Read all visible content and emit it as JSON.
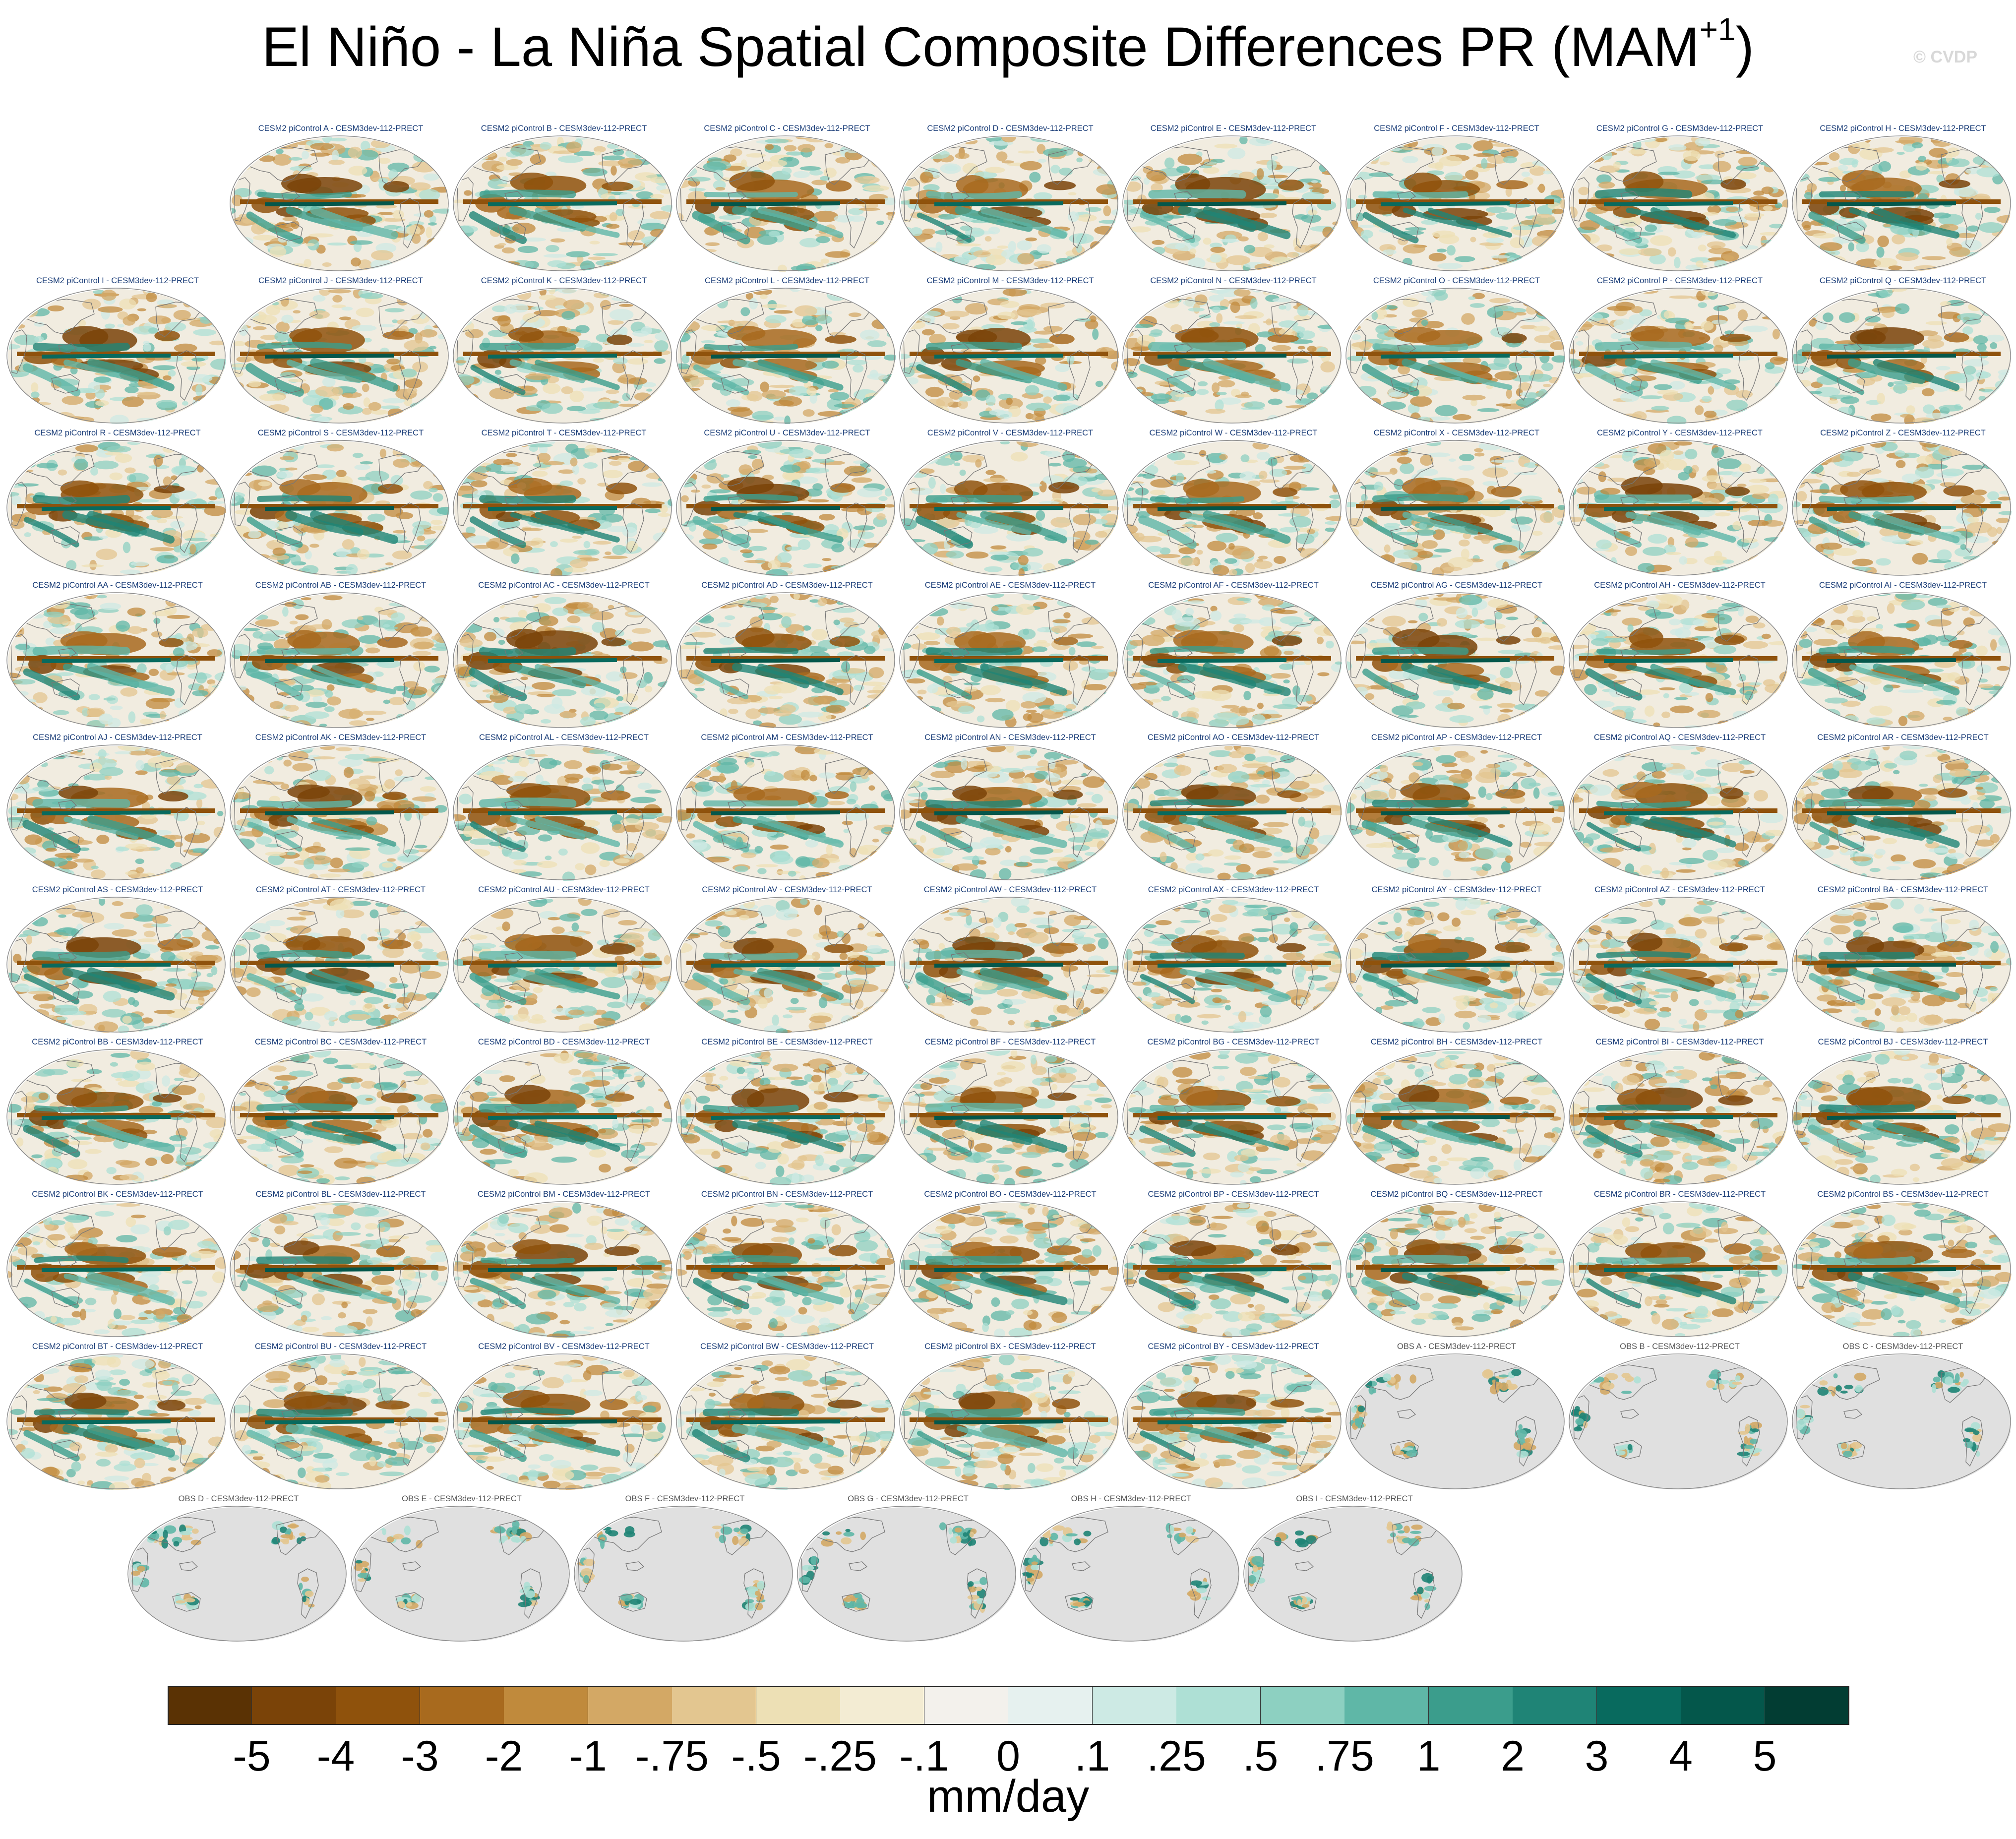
{
  "title": "El Niño - La Niña Spatial Composite Differences PR (MAM",
  "title_superscript": "+1",
  "title_suffix": ")",
  "copyright": "© CVDP",
  "units": "mm/day",
  "colors": {
    "ensemble_label": "#1a3d78",
    "obs_label": "#555555",
    "land_obs": "#e0e0e0",
    "coast": "#777777"
  },
  "colorbar": {
    "ticks": [
      "-5",
      "-4",
      "-3",
      "-2",
      "-1",
      "-.75",
      "-.5",
      "-.25",
      "-.1",
      "0",
      ".1",
      ".25",
      ".5",
      ".75",
      "1",
      "2",
      "3",
      "4",
      "5"
    ],
    "colors": [
      "#5a3204",
      "#7a4308",
      "#8f520c",
      "#a86a1e",
      "#c08a3c",
      "#d3a865",
      "#e3c690",
      "#ede0b5",
      "#f3ecd3",
      "#f3f1ec",
      "#e6f1ef",
      "#cdeae4",
      "#aee0d5",
      "#8dd0c1",
      "#5fb7a7",
      "#3b9d8c",
      "#1f8476",
      "#086a5e",
      "#04574b",
      "#023d33"
    ]
  },
  "panel_rows": [
    [
      "CESM2 piControl A - CESM3dev-112-PRECT",
      "CESM2 piControl B - CESM3dev-112-PRECT",
      "CESM2 piControl C - CESM3dev-112-PRECT",
      "CESM2 piControl D - CESM3dev-112-PRECT",
      "CESM2 piControl E - CESM3dev-112-PRECT",
      "CESM2 piControl F - CESM3dev-112-PRECT",
      "CESM2 piControl G - CESM3dev-112-PRECT",
      "CESM2 piControl H - CESM3dev-112-PRECT"
    ],
    [
      "CESM2 piControl I - CESM3dev-112-PRECT",
      "CESM2 piControl J - CESM3dev-112-PRECT",
      "CESM2 piControl K - CESM3dev-112-PRECT",
      "CESM2 piControl L - CESM3dev-112-PRECT",
      "CESM2 piControl M - CESM3dev-112-PRECT",
      "CESM2 piControl N - CESM3dev-112-PRECT",
      "CESM2 piControl O - CESM3dev-112-PRECT",
      "CESM2 piControl P - CESM3dev-112-PRECT",
      "CESM2 piControl Q - CESM3dev-112-PRECT"
    ],
    [
      "CESM2 piControl R - CESM3dev-112-PRECT",
      "CESM2 piControl S - CESM3dev-112-PRECT",
      "CESM2 piControl T - CESM3dev-112-PRECT",
      "CESM2 piControl U - CESM3dev-112-PRECT",
      "CESM2 piControl V - CESM3dev-112-PRECT",
      "CESM2 piControl W - CESM3dev-112-PRECT",
      "CESM2 piControl X - CESM3dev-112-PRECT",
      "CESM2 piControl Y - CESM3dev-112-PRECT",
      "CESM2 piControl Z - CESM3dev-112-PRECT"
    ],
    [
      "CESM2 piControl AA - CESM3dev-112-PRECT",
      "CESM2 piControl AB - CESM3dev-112-PRECT",
      "CESM2 piControl AC - CESM3dev-112-PRECT",
      "CESM2 piControl AD - CESM3dev-112-PRECT",
      "CESM2 piControl AE - CESM3dev-112-PRECT",
      "CESM2 piControl AF - CESM3dev-112-PRECT",
      "CESM2 piControl AG - CESM3dev-112-PRECT",
      "CESM2 piControl AH - CESM3dev-112-PRECT",
      "CESM2 piControl AI - CESM3dev-112-PRECT"
    ],
    [
      "CESM2 piControl AJ - CESM3dev-112-PRECT",
      "CESM2 piControl AK - CESM3dev-112-PRECT",
      "CESM2 piControl AL - CESM3dev-112-PRECT",
      "CESM2 piControl AM - CESM3dev-112-PRECT",
      "CESM2 piControl AN - CESM3dev-112-PRECT",
      "CESM2 piControl AO - CESM3dev-112-PRECT",
      "CESM2 piControl AP - CESM3dev-112-PRECT",
      "CESM2 piControl AQ - CESM3dev-112-PRECT",
      "CESM2 piControl AR - CESM3dev-112-PRECT"
    ],
    [
      "CESM2 piControl AS - CESM3dev-112-PRECT",
      "CESM2 piControl AT - CESM3dev-112-PRECT",
      "CESM2 piControl AU - CESM3dev-112-PRECT",
      "CESM2 piControl AV - CESM3dev-112-PRECT",
      "CESM2 piControl AW - CESM3dev-112-PRECT",
      "CESM2 piControl AX - CESM3dev-112-PRECT",
      "CESM2 piControl AY - CESM3dev-112-PRECT",
      "CESM2 piControl AZ - CESM3dev-112-PRECT",
      "CESM2 piControl BA - CESM3dev-112-PRECT"
    ],
    [
      "CESM2 piControl BB - CESM3dev-112-PRECT",
      "CESM2 piControl BC - CESM3dev-112-PRECT",
      "CESM2 piControl BD - CESM3dev-112-PRECT",
      "CESM2 piControl BE - CESM3dev-112-PRECT",
      "CESM2 piControl BF - CESM3dev-112-PRECT",
      "CESM2 piControl BG - CESM3dev-112-PRECT",
      "CESM2 piControl BH - CESM3dev-112-PRECT",
      "CESM2 piControl BI - CESM3dev-112-PRECT",
      "CESM2 piControl BJ - CESM3dev-112-PRECT"
    ],
    [
      "CESM2 piControl BK - CESM3dev-112-PRECT",
      "CESM2 piControl BL - CESM3dev-112-PRECT",
      "CESM2 piControl BM - CESM3dev-112-PRECT",
      "CESM2 piControl BN - CESM3dev-112-PRECT",
      "CESM2 piControl BO - CESM3dev-112-PRECT",
      "CESM2 piControl BP - CESM3dev-112-PRECT",
      "CESM2 piControl BQ - CESM3dev-112-PRECT",
      "CESM2 piControl BR - CESM3dev-112-PRECT",
      "CESM2 piControl BS - CESM3dev-112-PRECT"
    ],
    [
      "CESM2 piControl BT - CESM3dev-112-PRECT",
      "CESM2 piControl BU - CESM3dev-112-PRECT",
      "CESM2 piControl BV - CESM3dev-112-PRECT",
      "CESM2 piControl BW - CESM3dev-112-PRECT",
      "CESM2 piControl BX - CESM3dev-112-PRECT",
      "CESM2 piControl BY - CESM3dev-112-PRECT",
      "OBS A - CESM3dev-112-PRECT",
      "OBS B - CESM3dev-112-PRECT",
      "OBS C - CESM3dev-112-PRECT"
    ],
    [
      "OBS D - CESM3dev-112-PRECT",
      "OBS E - CESM3dev-112-PRECT",
      "OBS F - CESM3dev-112-PRECT",
      "OBS G - CESM3dev-112-PRECT",
      "OBS H - CESM3dev-112-PRECT",
      "OBS I - CESM3dev-112-PRECT"
    ]
  ]
}
